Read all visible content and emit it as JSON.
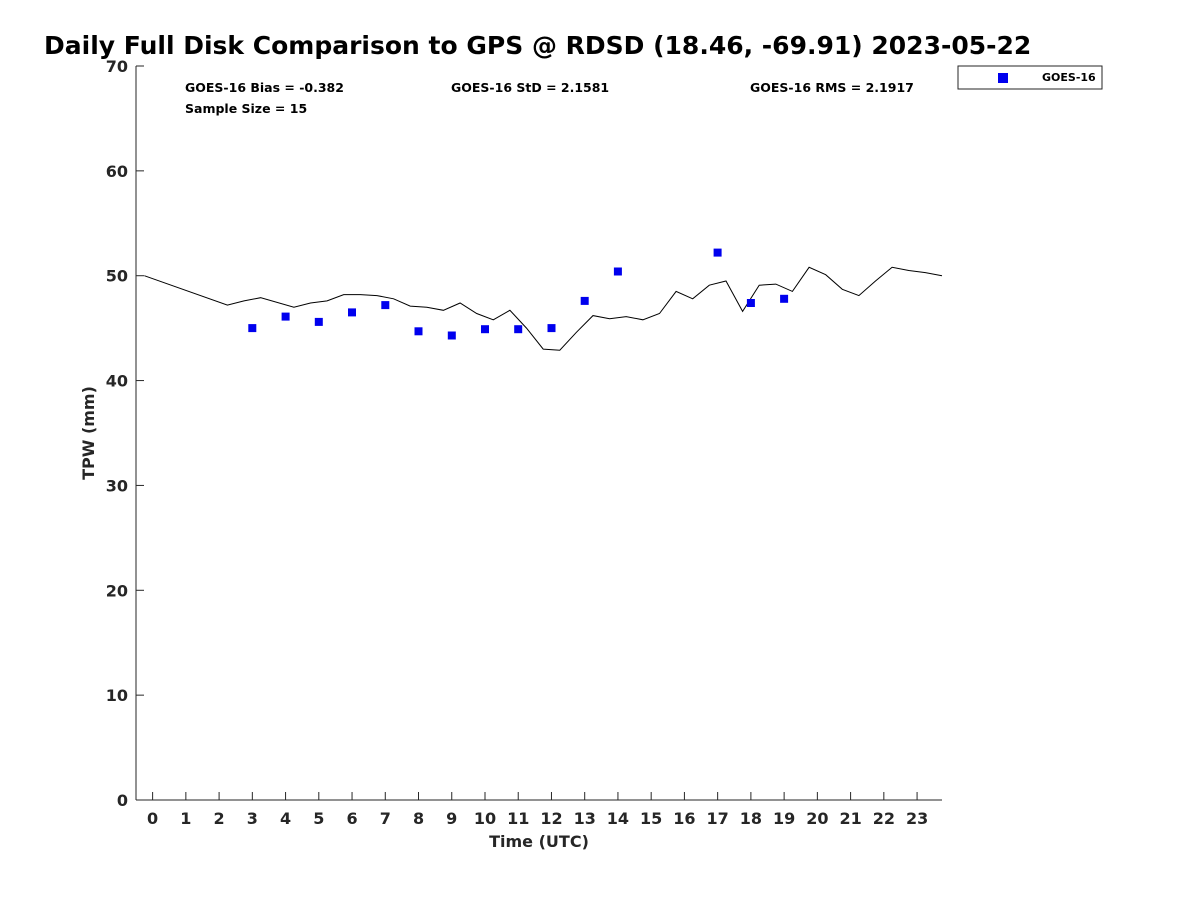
{
  "chart_data": {
    "type": "scatter",
    "title": "Daily Full Disk Comparison to GPS @ RDSD (18.46, -69.91) 2023-05-22",
    "xlabel": "Time (UTC)",
    "ylabel": "TPW (mm)",
    "xlim": [
      -0.5,
      23.75
    ],
    "ylim": [
      0,
      70
    ],
    "xticks": [
      0,
      1,
      2,
      3,
      4,
      5,
      6,
      7,
      8,
      9,
      10,
      11,
      12,
      13,
      14,
      15,
      16,
      17,
      18,
      19,
      20,
      21,
      22,
      23
    ],
    "xtick_labels": [
      "0",
      "1",
      "2",
      "3",
      "4",
      "5",
      "6",
      "7",
      "8",
      "9",
      "10",
      "11",
      "12",
      "13",
      "14",
      "15",
      "16",
      "17",
      "18",
      "19",
      "20",
      "21",
      "22",
      "23"
    ],
    "yticks": [
      0,
      10,
      20,
      30,
      40,
      50,
      60,
      70
    ],
    "ytick_labels": [
      "0",
      "10",
      "20",
      "30",
      "40",
      "50",
      "60",
      "70"
    ],
    "grid": false,
    "legend_position": "top-right",
    "stats": {
      "bias": "GOES-16 Bias = -0.382",
      "std": "GOES-16 StD = 2.1581",
      "rms": "GOES-16 RMS = 2.1917",
      "sample_size": "Sample Size = 15"
    },
    "series": [
      {
        "name": "GOES-16",
        "kind": "scatter",
        "marker": "square",
        "color": "#0000ee",
        "x": [
          3,
          4,
          5,
          6,
          7,
          8,
          9,
          10,
          11,
          12,
          13,
          14,
          17,
          18,
          19
        ],
        "y": [
          45.0,
          46.1,
          45.6,
          46.5,
          47.2,
          44.7,
          44.3,
          44.9,
          44.9,
          45.0,
          47.6,
          50.4,
          52.2,
          47.4,
          47.8
        ]
      },
      {
        "kind": "line",
        "color": "#000000",
        "x": [
          -0.25,
          2.25,
          2.75,
          3.25,
          4.25,
          4.75,
          5.25,
          5.75,
          6.25,
          6.75,
          7.25,
          7.75,
          8.25,
          8.75,
          9.25,
          9.75,
          10.25,
          10.75,
          11.25,
          11.75,
          12.25,
          12.75,
          13.25,
          13.75,
          14.25,
          14.75,
          15.25,
          15.75,
          16.25,
          16.75,
          17.25,
          17.75,
          18.25,
          18.75,
          19.25,
          19.75,
          20.25,
          20.75,
          21.25,
          21.75,
          22.25,
          22.75,
          23.25,
          23.75
        ],
        "y": [
          50.0,
          47.2,
          47.6,
          47.9,
          47.0,
          47.4,
          47.6,
          48.2,
          48.2,
          48.1,
          47.8,
          47.1,
          47.0,
          46.7,
          47.4,
          46.4,
          45.8,
          46.7,
          45.0,
          43.0,
          42.9,
          44.6,
          46.2,
          45.9,
          46.1,
          45.8,
          46.4,
          48.5,
          47.8,
          49.1,
          49.5,
          46.6,
          49.1,
          49.2,
          48.5,
          50.8,
          50.1,
          48.7,
          48.1,
          49.5,
          50.8,
          50.5,
          50.3,
          50.0
        ]
      }
    ]
  }
}
